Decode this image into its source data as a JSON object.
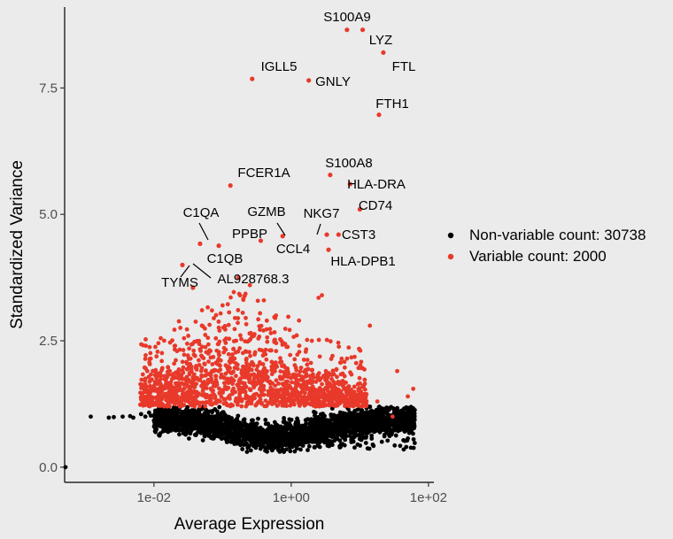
{
  "chart_data": {
    "type": "scatter",
    "xlabel": "Average Expression",
    "ylabel": "Standardized Variance",
    "x_scale": "log10",
    "xlim": [
      0.0005,
      120
    ],
    "ylim": [
      -0.3,
      9.1
    ],
    "x_ticks": [
      {
        "value": 0.01,
        "label": "1e-02"
      },
      {
        "value": 1,
        "label": "1e+00"
      },
      {
        "value": 100,
        "label": "1e+02"
      }
    ],
    "y_ticks": [
      {
        "value": 0.0,
        "label": "0.0"
      },
      {
        "value": 2.5,
        "label": "2.5"
      },
      {
        "value": 5.0,
        "label": "5.0"
      },
      {
        "value": 7.5,
        "label": "7.5"
      }
    ],
    "grid": false,
    "legend_position": "right",
    "colors": {
      "non_variable": "#000000",
      "variable": "#e8392a"
    },
    "series": [
      {
        "name": "Non-variable count: 30738",
        "color": "#000000",
        "points": [
          {
            "x": 0.0012,
            "y": 1.0
          },
          {
            "x": 0.0025,
            "y": 0.98
          },
          {
            "x": 0.004,
            "y": 0.99
          },
          {
            "x": 0.006,
            "y": 1.02
          },
          {
            "x": 0.009,
            "y": 1.05
          },
          {
            "x": 0.015,
            "y": 1.08
          },
          {
            "x": 0.03,
            "y": 1.0
          },
          {
            "x": 0.08,
            "y": 0.9
          },
          {
            "x": 0.2,
            "y": 0.7
          },
          {
            "x": 0.5,
            "y": 0.55
          },
          {
            "x": 1.0,
            "y": 0.6
          },
          {
            "x": 3.0,
            "y": 0.75
          },
          {
            "x": 10.0,
            "y": 0.9
          },
          {
            "x": 30.0,
            "y": 1.0
          },
          {
            "x": 0.0,
            "y": 0.0
          }
        ]
      },
      {
        "name": "Variable count: 2000",
        "color": "#e8392a",
        "points": [
          {
            "x": 6.5,
            "y": 8.65,
            "label": "S100A9"
          },
          {
            "x": 11.0,
            "y": 8.65,
            "label": "LYZ"
          },
          {
            "x": 22.0,
            "y": 8.2,
            "label": "FTL"
          },
          {
            "x": 0.27,
            "y": 7.68,
            "label": "IGLL5"
          },
          {
            "x": 1.8,
            "y": 7.65,
            "label": "GNLY"
          },
          {
            "x": 19.0,
            "y": 6.97,
            "label": "FTH1"
          },
          {
            "x": 3.7,
            "y": 5.78,
            "label": "S100A8"
          },
          {
            "x": 0.13,
            "y": 5.57,
            "label": "FCER1A"
          },
          {
            "x": 7.2,
            "y": 5.6,
            "label": "HLA-DRA"
          },
          {
            "x": 10.0,
            "y": 5.1,
            "label": "CD74"
          },
          {
            "x": 0.75,
            "y": 4.57,
            "label": "GZMB"
          },
          {
            "x": 3.3,
            "y": 4.6,
            "label": "NKG7"
          },
          {
            "x": 0.047,
            "y": 4.42,
            "label": "C1QA"
          },
          {
            "x": 0.36,
            "y": 4.48,
            "label": "PPBP"
          },
          {
            "x": 4.9,
            "y": 4.6,
            "label": "CST3"
          },
          {
            "x": 3.5,
            "y": 4.3,
            "label": "HLA-DPB1"
          },
          {
            "x": 0.088,
            "y": 4.38,
            "label": "CCL4"
          },
          {
            "x": 0.026,
            "y": 4.0,
            "label": "C1QB"
          },
          {
            "x": 0.037,
            "y": 3.55,
            "label": "TYMS"
          },
          {
            "x": 0.17,
            "y": 3.75,
            "label": "AL928768.3"
          }
        ]
      }
    ],
    "note_points": "remaining points follow the visible cloud shape"
  }
}
